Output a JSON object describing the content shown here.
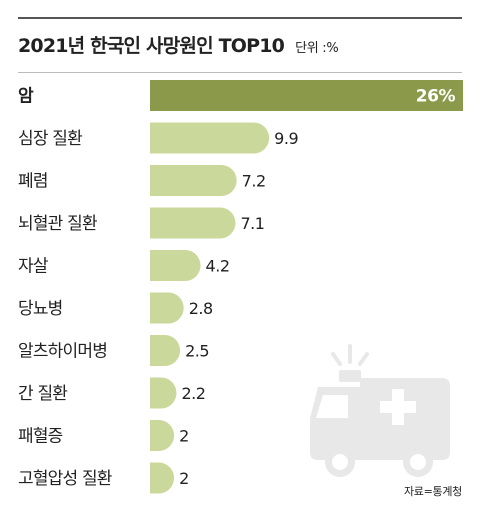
{
  "header": {
    "title": "2021년 한국인 사망원인 TOP10",
    "unit": "단위 :%"
  },
  "source": "자료=통계청",
  "icons": [
    "ambulance-icon"
  ],
  "colors": {
    "bar": "#cbd89c",
    "top_bar": "#8a9a4a",
    "ambulance": "#e8e8e8"
  },
  "chart_data": {
    "type": "bar",
    "orientation": "horizontal",
    "categories": [
      "암",
      "심장 질환",
      "폐렴",
      "뇌혈관 질환",
      "자살",
      "당뇨병",
      "알츠하이머병",
      "간 질환",
      "패혈증",
      "고혈압성 질환"
    ],
    "values": [
      26,
      9.9,
      7.2,
      7.1,
      4.2,
      2.8,
      2.5,
      2.2,
      2,
      2
    ],
    "value_labels": [
      "26%",
      "9.9",
      "7.2",
      "7.1",
      "4.2",
      "2.8",
      "2.5",
      "2.2",
      "2",
      "2"
    ],
    "title": "2021년 한국인 사망원인 TOP10",
    "unit": "단위 :%",
    "grid": false,
    "legend": "none"
  }
}
